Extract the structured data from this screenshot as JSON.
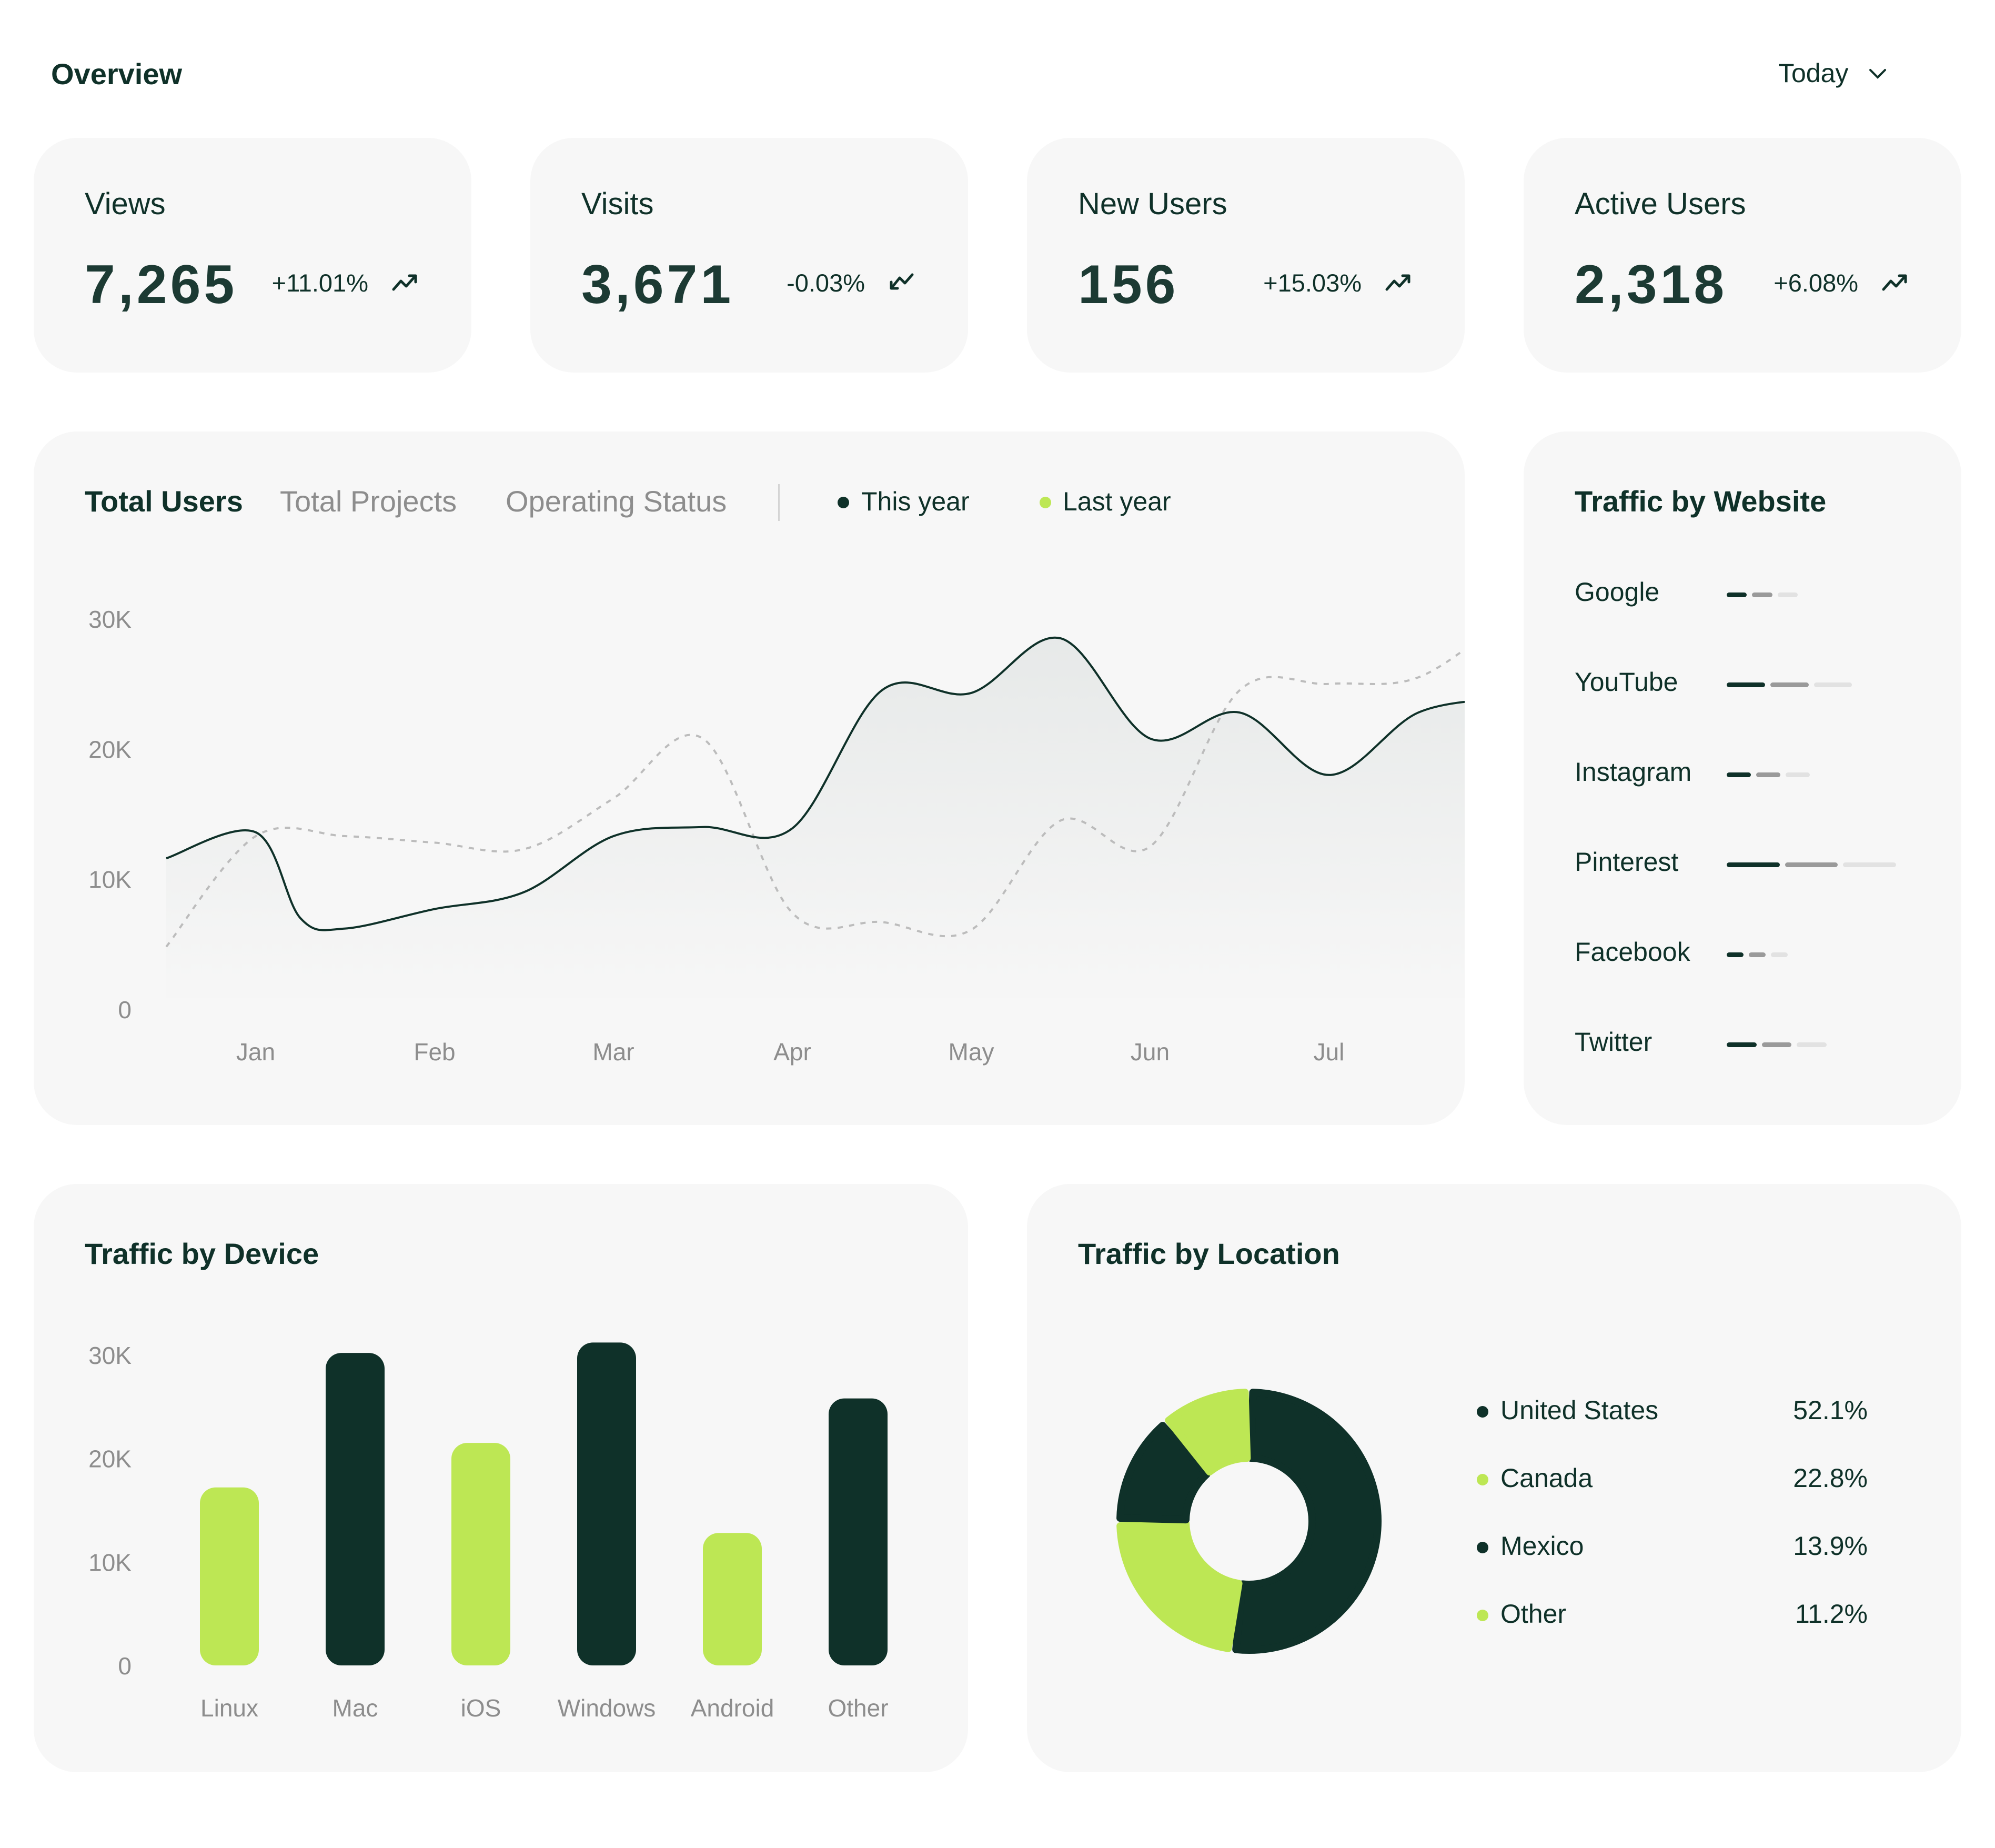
{
  "header": {
    "title": "Overview",
    "period": "Today"
  },
  "colors": {
    "dark": "#0f3129",
    "lime": "#bde754",
    "card": "#f7f7f7",
    "gray": "#8d8d8d"
  },
  "stats": [
    {
      "label": "Views",
      "value": "7,265",
      "change": "+11.01%",
      "trend": "trend-up-icon"
    },
    {
      "label": "Visits",
      "value": "3,671",
      "change": "-0.03%",
      "trend": "trend-down-icon"
    },
    {
      "label": "New Users",
      "value": "156",
      "change": "+15.03%",
      "trend": "trend-up-icon"
    },
    {
      "label": "Active Users",
      "value": "2,318",
      "change": "+6.08%",
      "trend": "trend-up-icon"
    }
  ],
  "users_panel": {
    "tabs": [
      "Total Users",
      "Total Projects",
      "Operating Status"
    ],
    "active_tab": "Total Users",
    "legend": [
      "This year",
      "Last year"
    ]
  },
  "website_panel": {
    "title": "Traffic by Website",
    "sites": [
      {
        "name": "Google",
        "level": 0.42
      },
      {
        "name": "YouTube",
        "level": 0.74
      },
      {
        "name": "Instagram",
        "level": 0.49
      },
      {
        "name": "Pinterest",
        "level": 1.0
      },
      {
        "name": "Facebook",
        "level": 0.36
      },
      {
        "name": "Twitter",
        "level": 0.59
      }
    ]
  },
  "device_panel": {
    "title": "Traffic by Device"
  },
  "location_panel": {
    "title": "Traffic by Location",
    "items": [
      {
        "name": "United States",
        "pct": "52.1%",
        "value": 52.1,
        "color": "#0f3129"
      },
      {
        "name": "Canada",
        "pct": "22.8%",
        "value": 22.8,
        "color": "#bde754"
      },
      {
        "name": "Mexico",
        "pct": "13.9%",
        "value": 13.9,
        "color": "#0f3129"
      },
      {
        "name": "Other",
        "pct": "11.2%",
        "value": 11.2,
        "color": "#bde754"
      }
    ]
  },
  "chart_data": [
    {
      "type": "line",
      "x": [
        "Jan",
        "Feb",
        "Mar",
        "Apr",
        "May",
        "Jun",
        "Jul"
      ],
      "ylim": [
        0,
        30000
      ],
      "yticks": [
        "0",
        "10K",
        "20K",
        "30K"
      ],
      "series": [
        {
          "name": "This year",
          "color": "#0f3129",
          "points": [
            [
              0,
              11600
            ],
            [
              0.5,
              13600
            ],
            [
              0.75,
              7000
            ],
            [
              1,
              6200
            ],
            [
              1.5,
              7700
            ],
            [
              2,
              9000
            ],
            [
              2.5,
              13300
            ],
            [
              3,
              14000
            ],
            [
              3.5,
              13900
            ],
            [
              4,
              24500
            ],
            [
              4.5,
              24300
            ],
            [
              5,
              28500
            ],
            [
              5.5,
              20800
            ],
            [
              6,
              22800
            ],
            [
              6.5,
              18000
            ],
            [
              7,
              22800
            ],
            [
              7.5,
              23900
            ]
          ]
        },
        {
          "name": "Last year",
          "color": "#bcbcbc",
          "points": [
            [
              0,
              4800
            ],
            [
              0.5,
              13300
            ],
            [
              1,
              13300
            ],
            [
              1.5,
              12800
            ],
            [
              2,
              12300
            ],
            [
              2.5,
              16200
            ],
            [
              3,
              20800
            ],
            [
              3.5,
              7400
            ],
            [
              4,
              6700
            ],
            [
              4.5,
              6100
            ],
            [
              5,
              14500
            ],
            [
              5.5,
              12500
            ],
            [
              6,
              24500
            ],
            [
              6.5,
              25000
            ],
            [
              7,
              25500
            ],
            [
              7.5,
              30200
            ]
          ]
        }
      ]
    },
    {
      "type": "bar",
      "categories": [
        "Linux",
        "Mac",
        "iOS",
        "Windows",
        "Android",
        "Other"
      ],
      "values": [
        17200,
        30200,
        21500,
        31200,
        12800,
        25800
      ],
      "colors": [
        "#bde754",
        "#0f3129",
        "#bde754",
        "#0f3129",
        "#bde754",
        "#0f3129"
      ],
      "ylim": [
        0,
        30000
      ],
      "yticks": [
        "0",
        "10K",
        "20K",
        "30K"
      ]
    },
    {
      "type": "pie",
      "labels": [
        "United States",
        "Canada",
        "Mexico",
        "Other"
      ],
      "values": [
        52.1,
        22.8,
        13.9,
        11.2
      ]
    }
  ]
}
